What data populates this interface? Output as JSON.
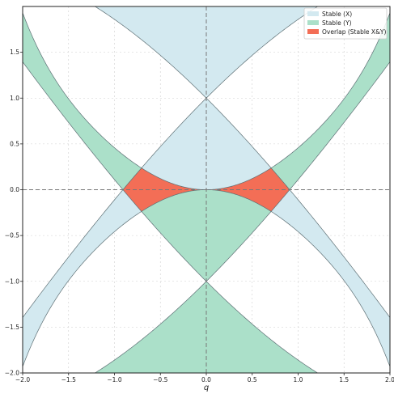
{
  "chart_data": {
    "type": "area",
    "title": "",
    "xlabel": "q",
    "ylabel": "",
    "xlim": [
      -2.0,
      2.0
    ],
    "ylim": [
      -2.0,
      2.0
    ],
    "xticks": [
      -2.0,
      -1.5,
      -1.0,
      -0.5,
      0.0,
      0.5,
      1.0,
      1.5,
      2.0
    ],
    "yticks": [
      -2.0,
      -1.5,
      -1.0,
      -0.5,
      0.0,
      0.5,
      1.0,
      1.5
    ],
    "xtick_labels": [
      "−2.0",
      "−1.5",
      "−1.0",
      "−0.5",
      "0.0",
      "0.5",
      "1.0",
      "1.5",
      "2.0"
    ],
    "ytick_labels": [
      "−2.0",
      "−1.5",
      "−1.0",
      "−0.5",
      "0.0",
      "0.5",
      "1.0",
      "1.5"
    ],
    "grid": true,
    "reference_lines": {
      "x": 0.0,
      "y": 0.0
    },
    "legend_position": "top-right",
    "series": [
      {
        "name": "Stable (X)",
        "color": "#d3e9f0",
        "region": "between a_upper(q) and a_lower(q), q in [-2, 2]",
        "a_upper_samples": [
          [
            -2.0,
            -1.4
          ],
          [
            -1.0,
            -0.37
          ],
          [
            -0.5,
            0.44
          ],
          [
            0.0,
            1.0
          ],
          [
            0.5,
            0.44
          ],
          [
            1.0,
            -0.37
          ],
          [
            2.0,
            -1.4
          ]
        ],
        "a_lower_samples": [
          [
            -2.0,
            -1.52
          ],
          [
            -1.0,
            -0.49
          ],
          [
            -0.5,
            -0.12
          ],
          [
            0.0,
            0.0
          ],
          [
            0.5,
            -0.12
          ],
          [
            1.0,
            -0.49
          ],
          [
            2.0,
            -1.52
          ]
        ],
        "upper_lobe_samples": [
          [
            -1.18,
            2.0
          ],
          [
            -0.5,
            1.43
          ],
          [
            0.0,
            1.0
          ],
          [
            0.5,
            1.43
          ],
          [
            1.18,
            2.0
          ]
        ]
      },
      {
        "name": "Stable (Y)",
        "color": "#abe0c9",
        "region": "mirror of Stable (X) about a = 0"
      },
      {
        "name": "Overlap (Stable X&Y)",
        "color": "#f36e56",
        "region": "intersection of Stable (X) and Stable (Y)",
        "vertices": [
          [
            -0.908,
            0.0
          ],
          [
            -0.706,
            0.235
          ],
          [
            0.0,
            0.0
          ],
          [
            0.706,
            0.235
          ],
          [
            0.908,
            0.0
          ],
          [
            0.706,
            -0.235
          ],
          [
            0.0,
            0.0
          ],
          [
            -0.706,
            -0.235
          ]
        ]
      }
    ]
  }
}
